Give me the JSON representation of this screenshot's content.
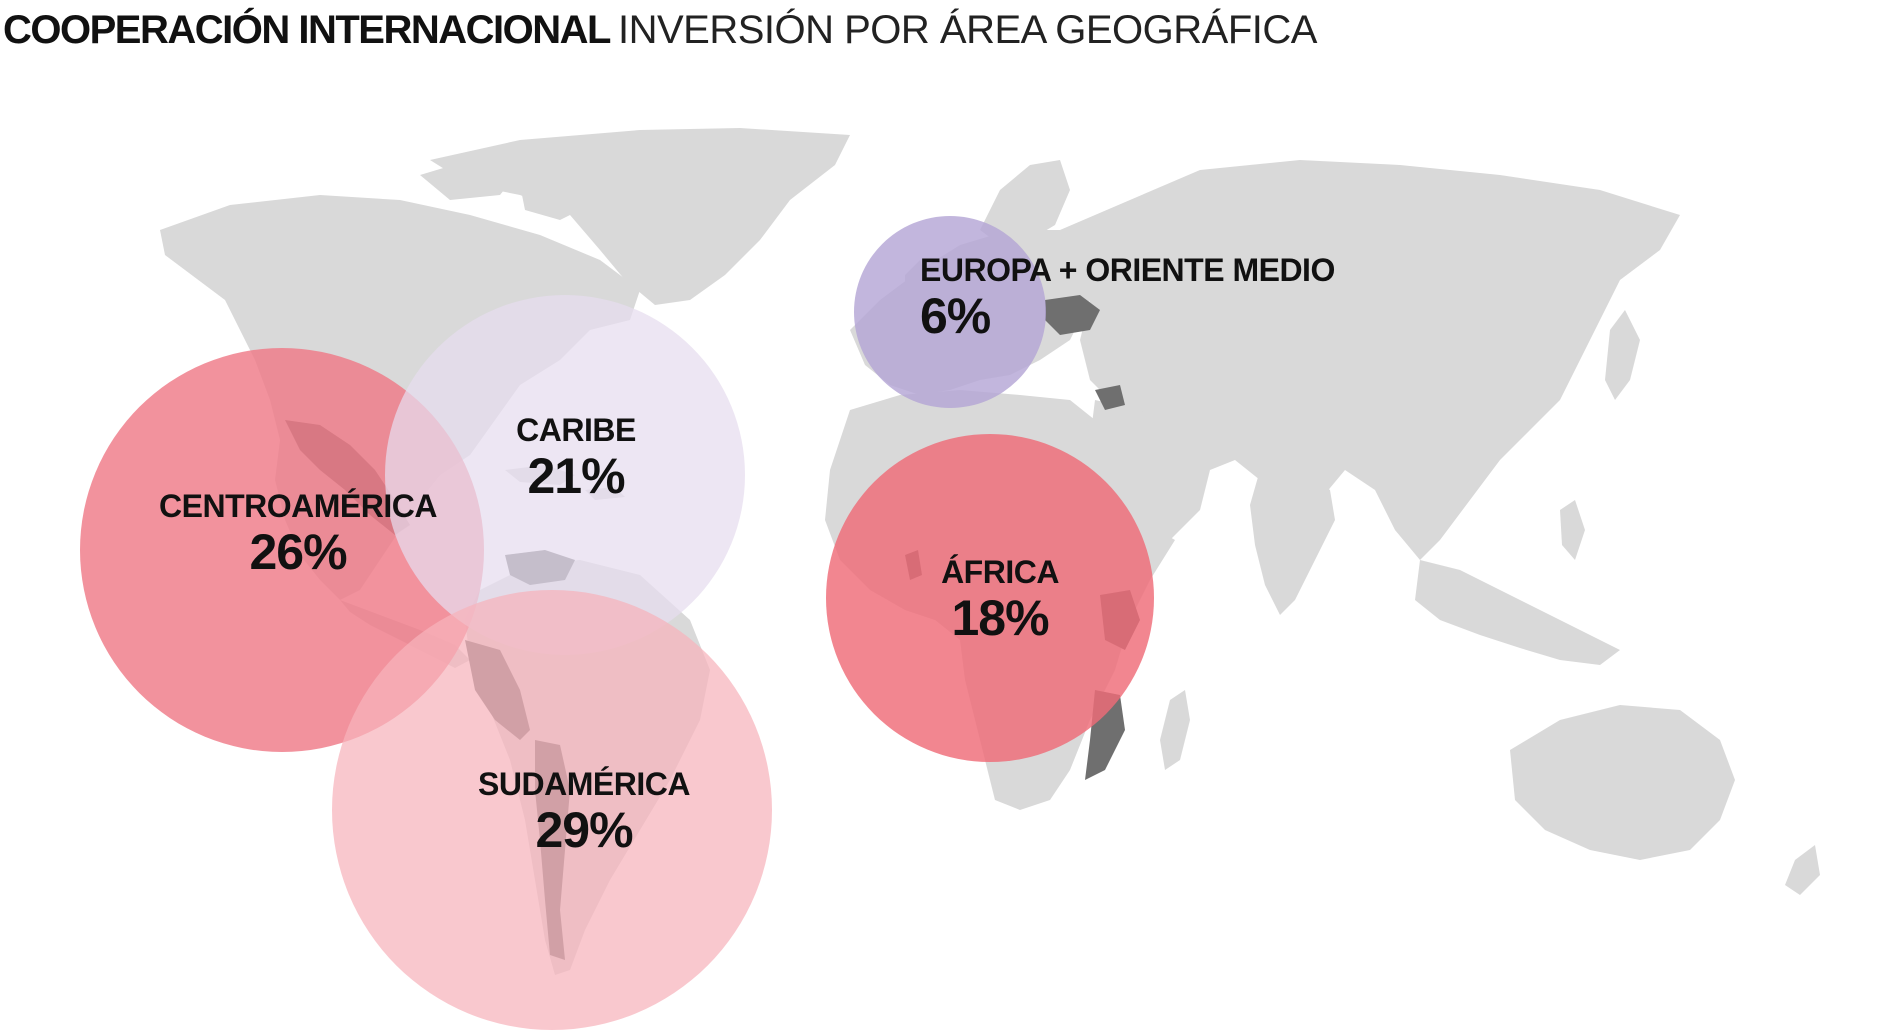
{
  "header": {
    "title_bold": "COOPERACIÓN INTERNACIONAL",
    "title_light": "INVERSIÓN POR ÁREA GEOGRÁFICA"
  },
  "regions": [
    {
      "id": "centroamerica",
      "name": "CENTROAMÉRICA",
      "percent": "26%",
      "share": 26,
      "color": "#ef7a88"
    },
    {
      "id": "caribe",
      "name": "CARIBE",
      "percent": "21%",
      "share": 21,
      "color": "#e6dcee"
    },
    {
      "id": "sudamerica",
      "name": "SUDAMÉRICA",
      "percent": "29%",
      "share": 29,
      "color": "#f6b3bb"
    },
    {
      "id": "europa",
      "name": "EUROPA + ORIENTE MEDIO",
      "percent": "6%",
      "share": 6,
      "color": "#b4a6d6"
    },
    {
      "id": "africa",
      "name": "ÁFRICA",
      "percent": "18%",
      "share": 18,
      "color": "#ef6b77"
    }
  ],
  "colors": {
    "land": "#d9d9d9",
    "highlighted_country": "#6f6f6f"
  }
}
